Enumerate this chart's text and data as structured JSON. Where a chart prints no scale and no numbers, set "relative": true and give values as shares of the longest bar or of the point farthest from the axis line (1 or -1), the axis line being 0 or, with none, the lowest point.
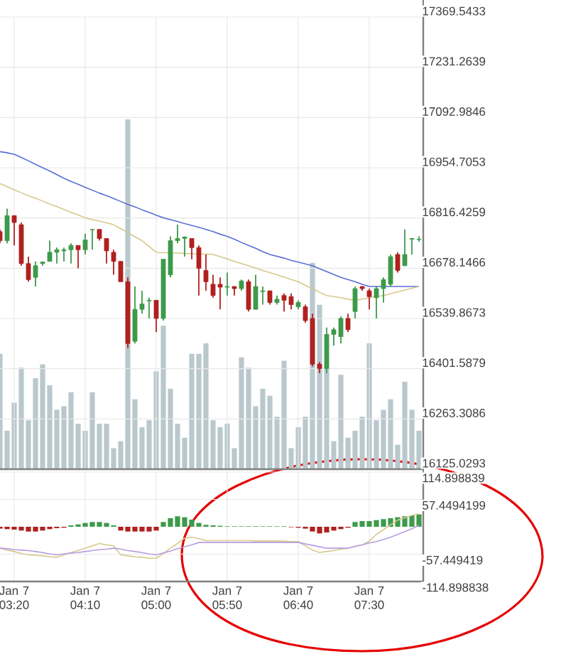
{
  "chart_data": [
    {
      "type": "candlestick",
      "categories": [
        null,
        null,
        null,
        null,
        null,
        null,
        null,
        null,
        null,
        null,
        null,
        null,
        null,
        null,
        null,
        null,
        null,
        null,
        null,
        null,
        null,
        null,
        null,
        null,
        null,
        null,
        null,
        null,
        null,
        null,
        null,
        null,
        null,
        null,
        null,
        null,
        null,
        null,
        null,
        null,
        null,
        null,
        null,
        null,
        null,
        null,
        null,
        null,
        null,
        null,
        null,
        null,
        null,
        null,
        null,
        null,
        null,
        null,
        null,
        null
      ],
      "ohlc": [
        [
          16779,
          16785,
          16747,
          16754
        ],
        [
          16754,
          16842,
          16747,
          16823
        ],
        [
          16823,
          16823,
          16741,
          16804
        ],
        [
          16798,
          16804,
          16685,
          16691
        ],
        [
          16691,
          16710,
          16641,
          16647
        ],
        [
          16653,
          16697,
          16628,
          16685
        ],
        [
          16691,
          16697,
          16685,
          16695
        ],
        [
          16697,
          16754,
          16697,
          16722
        ],
        [
          16722,
          16735,
          16691,
          16729
        ],
        [
          16726,
          16735,
          16697,
          16729
        ],
        [
          16729,
          16747,
          16691,
          16741
        ],
        [
          16741,
          16741,
          16678,
          16729
        ],
        [
          16729,
          16773,
          16716,
          16756
        ],
        [
          16784,
          16785,
          16729,
          16785
        ],
        [
          16785,
          16785,
          16754,
          16760
        ],
        [
          16760,
          16760,
          16691,
          16726
        ],
        [
          16722,
          16729,
          16660,
          16697
        ],
        [
          16697,
          16697,
          16641,
          16641
        ],
        [
          16641,
          16653,
          16458,
          16471
        ],
        [
          16477,
          16628,
          16471,
          16565
        ],
        [
          16565,
          16616,
          16553,
          16580
        ],
        [
          16588,
          16597,
          16540,
          16590
        ],
        [
          16590,
          16590,
          16502,
          16540
        ],
        [
          16540,
          16703,
          16534,
          16703
        ],
        [
          16660,
          16766,
          16653,
          16754
        ],
        [
          16754,
          16798,
          16747,
          16760
        ],
        [
          16760,
          16766,
          16710,
          16764
        ],
        [
          16760,
          16760,
          16703,
          16735
        ],
        [
          16735,
          16741,
          16603,
          16678
        ],
        [
          16672,
          16716,
          16616,
          16641
        ],
        [
          16634,
          16660,
          16597,
          16603
        ],
        [
          16634,
          16653,
          16565,
          16626
        ],
        [
          16626,
          16666,
          16603,
          16628
        ],
        [
          16628,
          16628,
          16603,
          16622
        ],
        [
          16622,
          16647,
          16616,
          16643
        ],
        [
          16641,
          16647,
          16559,
          16565
        ],
        [
          16565,
          16660,
          16565,
          16628
        ],
        [
          16614,
          16628,
          16578,
          16616
        ],
        [
          16616,
          16616,
          16578,
          16584
        ],
        [
          16584,
          16603,
          16578,
          16593
        ],
        [
          16603,
          16609,
          16559,
          16590
        ],
        [
          16600,
          16609,
          16565,
          16578
        ],
        [
          16572,
          16590,
          16565,
          16584
        ],
        [
          16572,
          16578,
          16528,
          16534
        ],
        [
          16540,
          16553,
          16408,
          16414
        ],
        [
          16414,
          16420,
          16389,
          16402
        ],
        [
          16402,
          16515,
          16389,
          16496
        ],
        [
          16496,
          16515,
          16465,
          16509
        ],
        [
          16490,
          16546,
          16471,
          16540
        ],
        [
          16540,
          16553,
          16502,
          16509
        ],
        [
          16559,
          16628,
          16540,
          16622
        ],
        [
          16628,
          16628,
          16616,
          16622
        ],
        [
          16616,
          16622,
          16565,
          16600
        ],
        [
          16597,
          16628,
          16540,
          16622
        ],
        [
          16622,
          16653,
          16584,
          16647
        ],
        [
          16634,
          16716,
          16628,
          16710
        ],
        [
          16716,
          16722,
          16666,
          16672
        ],
        [
          16685,
          16785,
          16685,
          16716
        ],
        [
          16758,
          16760,
          16716,
          16760
        ],
        [
          16757,
          16766,
          16751,
          16758
        ]
      ],
      "colors": [
        "#b0211f",
        "#3d9a4a",
        "#b0211f",
        "#b0211f",
        "#b0211f",
        "#3d9a4a",
        "#3d9a4a",
        "#3d9a4a",
        "#3d9a4a",
        "#3d9a4a",
        "#3d9a4a",
        "#b0211f",
        "#3d9a4a",
        "#3d9a4a",
        "#b0211f",
        "#b0211f",
        "#b0211f",
        "#b0211f",
        "#b0211f",
        "#3d9a4a",
        "#3d9a4a",
        "#3d9a4a",
        "#b0211f",
        "#3d9a4a",
        "#3d9a4a",
        "#3d9a4a",
        "#3d9a4a",
        "#b0211f",
        "#b0211f",
        "#b0211f",
        "#b0211f",
        "#b0211f",
        "#3d9a4a",
        "#b0211f",
        "#3d9a4a",
        "#b0211f",
        "#3d9a4a",
        "#3d9a4a",
        "#b0211f",
        "#3d9a4a",
        "#b0211f",
        "#b0211f",
        "#3d9a4a",
        "#b0211f",
        "#b0211f",
        "#b0211f",
        "#3d9a4a",
        "#3d9a4a",
        "#3d9a4a",
        "#b0211f",
        "#3d9a4a",
        "#b0211f",
        "#b0211f",
        "#3d9a4a",
        "#3d9a4a",
        "#3d9a4a",
        "#b0211f",
        "#3d9a4a",
        "#3d9a4a",
        "#3d9a4a"
      ],
      "series": [
        {
          "type": "line",
          "color": "#5a6fd3",
          "values": [
            16999,
            16996,
            16992,
            16983,
            16974,
            16964,
            16955,
            16946,
            16936,
            16926,
            16917,
            16909,
            16901,
            16893,
            16885,
            16878,
            16870,
            16862,
            16854,
            16847,
            16839,
            16832,
            16824,
            16817,
            16812,
            16807,
            16801,
            16796,
            16791,
            16785,
            16779,
            16772,
            16766,
            16758,
            16749,
            16741,
            16733,
            16724,
            16716,
            16711,
            16706,
            16700,
            16695,
            16690,
            16685,
            16677,
            16669,
            16661,
            16653,
            16647,
            16641,
            16634,
            16628,
            16628,
            16628,
            16628,
            16628,
            16628,
            16628,
            16628
          ]
        },
        {
          "type": "line",
          "color": "#d6c98c",
          "values": [
            16911,
            16903,
            16894,
            16886,
            16878,
            16871,
            16863,
            16855,
            16848,
            16840,
            16832,
            16825,
            16817,
            16812,
            16808,
            16803,
            16798,
            16787,
            16776,
            16765,
            16754,
            16738,
            16722,
            16721,
            16721,
            16720,
            16719,
            16718,
            16718,
            16717,
            16716,
            16710,
            16704,
            16697,
            16691,
            16685,
            16679,
            16672,
            16666,
            16660,
            16654,
            16647,
            16641,
            16631,
            16622,
            16612,
            16603,
            16600,
            16597,
            16593,
            16590,
            16593,
            16597,
            16600,
            16603,
            16608,
            16613,
            16618,
            16623,
            16628
          ]
        }
      ],
      "ylim": [
        16125.0293,
        17369.5433
      ],
      "yticks": [
        16125.0293,
        16263.3086,
        16401.5879,
        16539.8673,
        16678.1466,
        16816.4259,
        16954.7053,
        17092.9846,
        17231.2639,
        17369.5433
      ],
      "grid": true,
      "tick_labels": "y"
    },
    {
      "type": "bar",
      "relative": true,
      "categories": [
        null,
        null,
        null,
        null,
        null,
        null,
        null,
        null,
        null,
        null,
        null,
        null,
        null,
        null,
        null,
        null,
        null,
        null,
        null,
        null,
        null,
        null,
        null,
        null,
        null,
        null,
        null,
        null,
        null,
        null,
        null,
        null,
        null,
        null,
        null,
        null,
        null,
        null,
        null,
        null,
        null,
        null,
        null,
        null,
        null,
        null,
        null,
        null,
        null,
        null,
        null,
        null,
        null,
        null,
        null,
        null,
        null,
        null,
        null,
        null
      ],
      "values": [
        0.33,
        0.11,
        0.19,
        0.29,
        0.14,
        0.26,
        0.3,
        0.24,
        0.17,
        0.18,
        0.22,
        0.13,
        0.11,
        0.22,
        0.13,
        0.13,
        0.06,
        0.08,
        1,
        0.2,
        0.12,
        0.14,
        0.28,
        0.41,
        0.23,
        0.13,
        0.09,
        0.33,
        0.33,
        0.36,
        0.14,
        0.12,
        0.13,
        0.06,
        0.32,
        0.29,
        0.18,
        0.23,
        0.21,
        0.15,
        0.31,
        0.06,
        0.12,
        0.15,
        0.59,
        0.47,
        0.29,
        0.08,
        0.27,
        0.09,
        0.11,
        0.15,
        0.36,
        0.14,
        0.17,
        0.2,
        0.07,
        0.25,
        0.17,
        0.11
      ],
      "color": "#b9c8cd",
      "tick_labels": false
    },
    {
      "type": "bar",
      "categories": [
        null,
        null,
        "Jan 7 03:20",
        null,
        null,
        null,
        null,
        null,
        null,
        null,
        null,
        null,
        "Jan 7 04:10",
        null,
        null,
        null,
        null,
        null,
        null,
        null,
        null,
        null,
        "Jan 7 05:00",
        null,
        null,
        null,
        null,
        null,
        null,
        null,
        null,
        null,
        "Jan 7 05:50",
        null,
        null,
        null,
        null,
        null,
        null,
        null,
        null,
        null,
        "Jan 7 06:40",
        null,
        null,
        null,
        null,
        null,
        null,
        null,
        null,
        null,
        "Jan 7 07:30",
        null,
        null,
        null,
        null,
        null,
        null,
        null
      ],
      "series": [
        {
          "type": "bar",
          "values": [
            -4,
            -5,
            -6,
            -8,
            -10,
            -10,
            -8,
            -5,
            -3,
            -2,
            3,
            5,
            8,
            10,
            10,
            8,
            3,
            -8,
            -10,
            -10,
            -10,
            -10,
            -8,
            10,
            18,
            22,
            20,
            15,
            8,
            4,
            3,
            2,
            1,
            1,
            1,
            1,
            1,
            1,
            1,
            1,
            1,
            -1,
            -2,
            -4,
            -10,
            -14,
            -12,
            -8,
            -5,
            -2,
            10,
            12,
            12,
            14,
            16,
            18,
            20,
            22,
            24,
            26
          ],
          "colors": [
            "#b0211f",
            "#b0211f",
            "#b0211f",
            "#b0211f",
            "#b0211f",
            "#b0211f",
            "#b0211f",
            "#b0211f",
            "#b0211f",
            "#b0211f",
            "#3d9a4a",
            "#3d9a4a",
            "#3d9a4a",
            "#3d9a4a",
            "#3d9a4a",
            "#3d9a4a",
            "#3d9a4a",
            "#b0211f",
            "#b0211f",
            "#b0211f",
            "#b0211f",
            "#b0211f",
            "#b0211f",
            "#3d9a4a",
            "#3d9a4a",
            "#3d9a4a",
            "#3d9a4a",
            "#3d9a4a",
            "#3d9a4a",
            "#3d9a4a",
            "#3d9a4a",
            "#3d9a4a",
            "#3d9a4a",
            "#3d9a4a",
            "#3d9a4a",
            "#3d9a4a",
            "#3d9a4a",
            "#3d9a4a",
            "#3d9a4a",
            "#3d9a4a",
            "#3d9a4a",
            "#b0211f",
            "#b0211f",
            "#b0211f",
            "#b0211f",
            "#b0211f",
            "#b0211f",
            "#b0211f",
            "#b0211f",
            "#b0211f",
            "#3d9a4a",
            "#3d9a4a",
            "#3d9a4a",
            "#3d9a4a",
            "#3d9a4a",
            "#3d9a4a",
            "#3d9a4a",
            "#3d9a4a",
            "#3d9a4a",
            "#3d9a4a"
          ]
        },
        {
          "type": "line",
          "color": "#d6c98c",
          "values": [
            -45,
            -49,
            -52,
            -56,
            -59,
            -60,
            -61,
            -63,
            -64,
            -59,
            -54,
            -50,
            -45,
            -40,
            -35,
            -38,
            -40,
            -59,
            -61,
            -63,
            -64,
            -66,
            -66,
            -56,
            -45,
            -35,
            -24,
            -22,
            -25,
            -29,
            -29,
            -29,
            -29,
            -29,
            -29,
            -29,
            -30,
            -30,
            -30,
            -30,
            -30,
            -31,
            -31,
            -40,
            -49,
            -54,
            -52,
            -50,
            -47,
            -45,
            -41,
            -38,
            -30,
            -16,
            -6,
            4,
            14,
            19,
            24,
            27
          ]
        },
        {
          "type": "line",
          "color": "#b89ce0",
          "values": [
            -45,
            -46,
            -48,
            -49,
            -50,
            -52,
            -54,
            -57,
            -59,
            -57,
            -55,
            -54,
            -52,
            -50,
            -48,
            -47,
            -45,
            -47,
            -50,
            -52,
            -54,
            -57,
            -59,
            -55,
            -51,
            -46,
            -42,
            -38,
            -33,
            -33,
            -33,
            -33,
            -33,
            -33,
            -33,
            -33,
            -33,
            -33,
            -33,
            -33,
            -33,
            -33,
            -33,
            -36,
            -39,
            -42,
            -45,
            -45,
            -45,
            -45,
            -41,
            -38,
            -34,
            -31,
            -27,
            -22,
            -16,
            -10,
            -4,
            3
          ]
        }
      ],
      "ylim": [
        -114.898839,
        114.898839
      ],
      "yticks": [
        -114.898838,
        -57.449419,
        57.4494199,
        114.898839
      ],
      "grid": true
    }
  ]
}
